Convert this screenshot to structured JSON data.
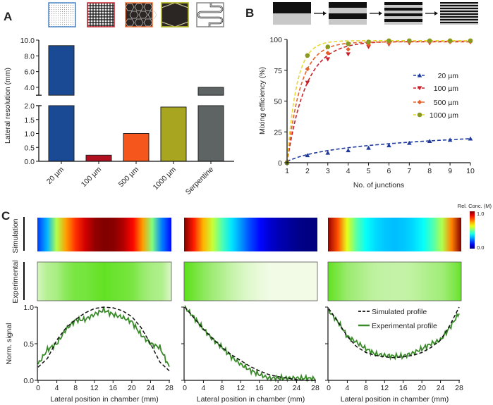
{
  "panel_labels": [
    "A",
    "B",
    "C"
  ],
  "chart_data": [
    {
      "type": "bar",
      "panel": "A",
      "ylabel": "Lateral resolution (mm)",
      "categories": [
        "20 µm",
        "100 µm",
        "500 µm",
        "1000 µm",
        "Serpentine"
      ],
      "values": [
        9.3,
        0.22,
        1.0,
        1.95,
        4.0
      ],
      "colors": [
        "#1b4a94",
        "#b01020",
        "#f4561c",
        "#a8a620",
        "#5e6463"
      ],
      "icon_border_colors": [
        "#4a86c8",
        "#c0262d",
        "#f06a2a",
        "#b5b52a",
        "#888888"
      ],
      "icon_names": [
        "dense-dot-mesh-icon",
        "fine-hexagon-mesh-icon",
        "hexagon-mesh-icon",
        "large-hexagon-icon",
        "serpentine-channel-icon"
      ],
      "y_axis_broken": true,
      "ylim_lower": [
        0,
        2
      ],
      "ylim_upper": [
        3,
        10
      ],
      "yticks_lower": [
        "0.0",
        "0.5",
        "1.0",
        "1.5",
        "2.0"
      ],
      "yticks_upper": [
        "4.0",
        "6.0",
        "8.0",
        "10.0"
      ]
    },
    {
      "type": "line",
      "panel": "B",
      "xlabel": "No. of junctions",
      "ylabel": "Mixing efficiency (%)",
      "x": [
        1,
        2,
        3,
        4,
        5,
        6,
        7,
        8,
        9,
        10
      ],
      "xlim": [
        1,
        10
      ],
      "ylim": [
        0,
        100
      ],
      "yticks": [
        0,
        25,
        50,
        75,
        100
      ],
      "legend_position": "center-right",
      "series": [
        {
          "name": "20 µm",
          "color": "#1f3a9a",
          "marker": "triangle-up",
          "values": [
            0,
            6,
            8,
            10,
            12,
            14,
            16,
            17.5,
            18.5,
            19.5
          ]
        },
        {
          "name": "100 µm",
          "color": "#c8202a",
          "marker": "triangle-down",
          "values": [
            0,
            65,
            84,
            88,
            94,
            96,
            97,
            97,
            98,
            98.5
          ]
        },
        {
          "name": "500 µm",
          "color": "#e8602a",
          "marker": "diamond",
          "values": [
            0,
            76,
            89,
            92,
            96,
            97,
            98,
            98,
            98,
            98
          ]
        },
        {
          "name": "1000 µm",
          "color": "#8a9a20",
          "marker": "circle",
          "values": [
            0,
            87,
            94,
            96.5,
            98,
            99,
            99,
            99,
            99,
            99
          ]
        }
      ],
      "stripe_sequence": [
        1,
        2,
        4,
        8
      ]
    },
    {
      "type": "line",
      "panel": "C",
      "row_labels": [
        "Simulation",
        "Experimental"
      ],
      "colorbar": {
        "label": "Rel. Conc. (M)",
        "max_label": "1.0",
        "min_label": "0.0",
        "colormap": "jet"
      },
      "xlabel": "Lateral position in chamber (mm)",
      "ylabel": "Norm. signal",
      "xlim": [
        0,
        28
      ],
      "xticks": [
        0,
        4,
        8,
        12,
        16,
        20,
        24,
        28
      ],
      "ylim": [
        0,
        1
      ],
      "yticks": [
        "0.0",
        "0.5",
        "1.0"
      ],
      "legend": [
        "Simulated profile",
        "Experimental profile"
      ],
      "sim_color": "#111111",
      "exp_color": "#3a8a2a",
      "x": [
        0,
        2,
        4,
        6,
        8,
        10,
        12,
        14,
        16,
        18,
        20,
        22,
        24,
        26,
        28
      ],
      "profiles": [
        {
          "simulated": [
            0.18,
            0.3,
            0.55,
            0.72,
            0.83,
            0.92,
            0.98,
            1.0,
            0.99,
            0.95,
            0.87,
            0.72,
            0.5,
            0.25,
            0.13
          ],
          "experimental": [
            0.22,
            0.42,
            0.5,
            0.7,
            0.82,
            0.83,
            0.9,
            0.96,
            0.9,
            0.86,
            0.8,
            0.62,
            0.5,
            0.45,
            0.18
          ]
        },
        {
          "simulated": [
            1.0,
            0.85,
            0.7,
            0.57,
            0.45,
            0.35,
            0.27,
            0.19,
            0.13,
            0.08,
            0.05,
            0.03,
            0.01,
            0.0,
            0.0
          ],
          "experimental": [
            1.0,
            0.86,
            0.7,
            0.56,
            0.45,
            0.32,
            0.22,
            0.14,
            0.08,
            0.03,
            0.03,
            0.03,
            0.03,
            0.03,
            0.02
          ]
        },
        {
          "simulated": [
            0.98,
            0.8,
            0.6,
            0.46,
            0.38,
            0.34,
            0.32,
            0.31,
            0.32,
            0.34,
            0.38,
            0.45,
            0.55,
            0.75,
            1.0
          ],
          "experimental": [
            0.95,
            0.8,
            0.6,
            0.52,
            0.43,
            0.36,
            0.34,
            0.33,
            0.33,
            0.37,
            0.43,
            0.5,
            0.55,
            0.72,
            0.92
          ]
        }
      ]
    }
  ]
}
